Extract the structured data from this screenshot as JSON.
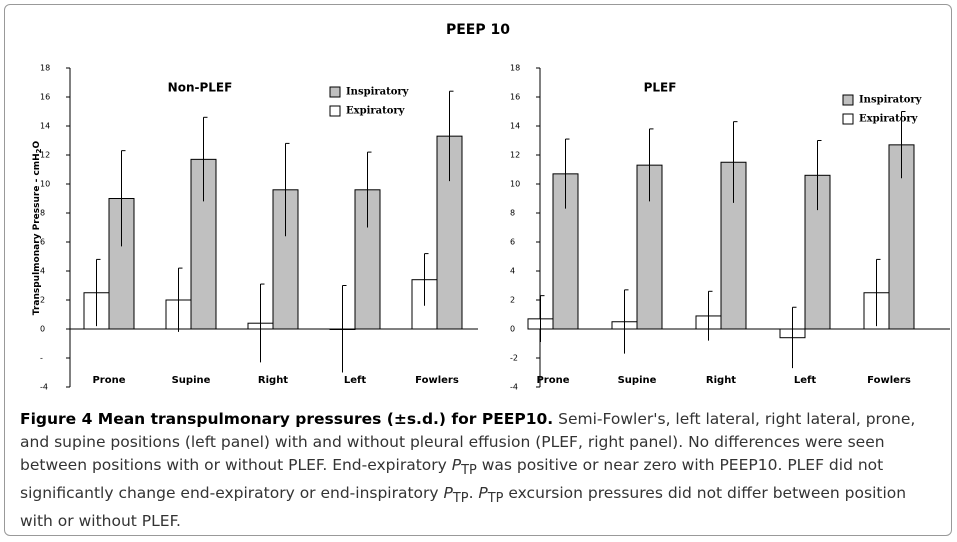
{
  "figure_title": "PEEP 10",
  "chart_data": [
    {
      "type": "bar",
      "title": "Non-PLEF",
      "ylabel": [
        "Transpulmonary Pressure - cmH",
        "2",
        "O"
      ],
      "categories": [
        "Prone",
        "Supine",
        "Right",
        "Left",
        "Fowlers"
      ],
      "series": [
        {
          "name": "Inspiratory",
          "color": "#c0c0c0",
          "values": [
            9.0,
            11.7,
            9.6,
            9.6,
            13.3
          ],
          "errors": [
            3.3,
            2.9,
            3.2,
            2.6,
            3.1
          ]
        },
        {
          "name": "Expiratory",
          "color": "#ffffff",
          "values": [
            2.5,
            2.0,
            0.4,
            0,
            3.4
          ],
          "errors": [
            2.3,
            2.2,
            2.7,
            3.0,
            1.8
          ]
        }
      ],
      "ylim": [
        -4,
        18
      ],
      "yticks": [
        {
          "value": -4,
          "label": "-4"
        },
        {
          "value": -2,
          "label": "-"
        },
        0,
        2,
        4,
        6,
        8,
        10,
        12,
        14,
        16,
        18
      ],
      "legend": "upper right"
    },
    {
      "type": "bar",
      "title": "PLEF",
      "categories": [
        "Prone",
        "Supine",
        "Right",
        "Left",
        "Fowlers"
      ],
      "series": [
        {
          "name": "Inspiratory",
          "color": "#c0c0c0",
          "values": [
            10.7,
            11.3,
            11.5,
            10.6,
            12.7
          ],
          "errors": [
            2.4,
            2.5,
            2.8,
            2.4,
            2.3
          ]
        },
        {
          "name": "Expiratory",
          "color": "#ffffff",
          "values": [
            0.7,
            0.5,
            0.9,
            -0.6,
            2.5
          ],
          "errors": [
            1.6,
            2.2,
            1.7,
            2.1,
            2.3
          ]
        }
      ],
      "ylim": [
        -4,
        18
      ],
      "yticks": [
        -4,
        -2,
        0,
        2,
        4,
        6,
        8,
        10,
        12,
        14,
        16,
        18
      ],
      "legend": "upper right"
    }
  ],
  "caption": {
    "title": "Figure 4 Mean transpulmonary pressures (±s.d.) for PEEP10.",
    "body": [
      " Semi-Fowler's, left lateral, right lateral, prone, and supine positions (left panel) with and without pleural effusion (PLEF, right panel). No differences were seen between positions with or without PLEF. End-expiratory ",
      "P",
      "TP",
      " was positive or near zero with PEEP10. PLEF did not significantly change end-expiratory or end-inspiratory ",
      "P",
      "TP",
      ". ",
      "P",
      "TP",
      " excursion pressures did not differ between position with or without PLEF."
    ]
  }
}
